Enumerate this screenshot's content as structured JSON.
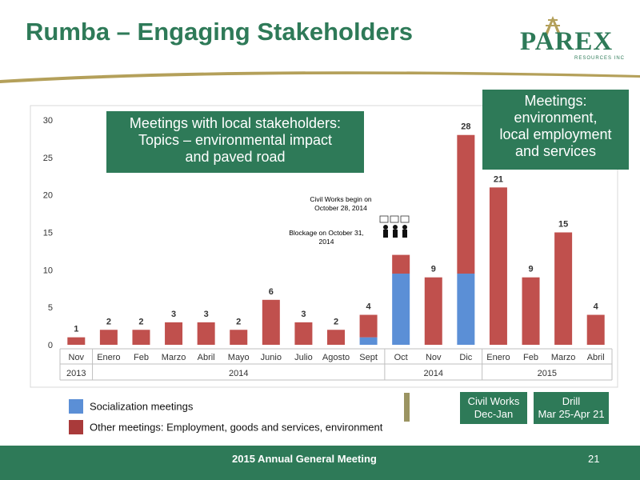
{
  "title": "Rumba – Engaging Stakeholders",
  "logo": {
    "text": "PAREX",
    "subtitle": "RESOURCES INC"
  },
  "colors": {
    "brand_green": "#2e7a58",
    "socialization": "#5b8fd6",
    "other": "#c0504d",
    "gold": "#b4a05a"
  },
  "callouts": {
    "left": [
      "Meetings with local stakeholders:",
      "Topics – environmental impact",
      "and paved road"
    ],
    "right": [
      "Meetings:",
      "environment,",
      "local employment",
      "and services"
    ]
  },
  "annotations": {
    "civil_works": [
      "Civil Works begin on",
      "October 28, 2014"
    ],
    "blockage": [
      "Blockage on October 31,",
      "2014"
    ]
  },
  "phases": {
    "civil": [
      "Civil Works",
      "Dec-Jan"
    ],
    "drill": [
      "Drill",
      "Mar 25-Apr 21"
    ]
  },
  "legend": {
    "socialization": "Socialization meetings",
    "other": "Other meetings: Employment, goods and services, environment"
  },
  "footer": {
    "text": "2015 Annual General Meeting",
    "page": "21"
  },
  "chart_data": {
    "type": "bar",
    "stacked": true,
    "categories": [
      "Nov",
      "Enero",
      "Feb",
      "Marzo",
      "Abril",
      "Mayo",
      "Junio",
      "Julio",
      "Agosto",
      "Sept",
      "Oct",
      "Nov",
      "Dic",
      "Enero",
      "Feb",
      "Marzo",
      "Abril"
    ],
    "years": [
      {
        "label": "2013",
        "span": 1
      },
      {
        "label": "2014",
        "span": 9
      },
      {
        "label": "2014",
        "span": 3
      },
      {
        "label": "2015",
        "span": 4
      }
    ],
    "series": [
      {
        "name": "Socialization meetings",
        "values": [
          0,
          0,
          0,
          0,
          0,
          0,
          0,
          0,
          0,
          1,
          9.5,
          0,
          9.5,
          0,
          0,
          0,
          0
        ]
      },
      {
        "name": "Other meetings: Employment, goods and services, environment",
        "values": [
          1,
          2,
          2,
          3,
          3,
          2,
          6,
          3,
          2,
          3,
          2.5,
          9,
          18.5,
          21,
          9,
          15,
          4
        ]
      }
    ],
    "totals": [
      "1",
      "2",
      "2",
      "3",
      "3",
      "2",
      "6",
      "3",
      "2",
      "4",
      "",
      "9",
      "28",
      "21",
      "9",
      "15",
      "4"
    ],
    "y_ticks": [
      "0",
      "5",
      "10",
      "15",
      "20",
      "25",
      "30"
    ],
    "ylim": [
      0,
      30
    ],
    "grid": false
  }
}
